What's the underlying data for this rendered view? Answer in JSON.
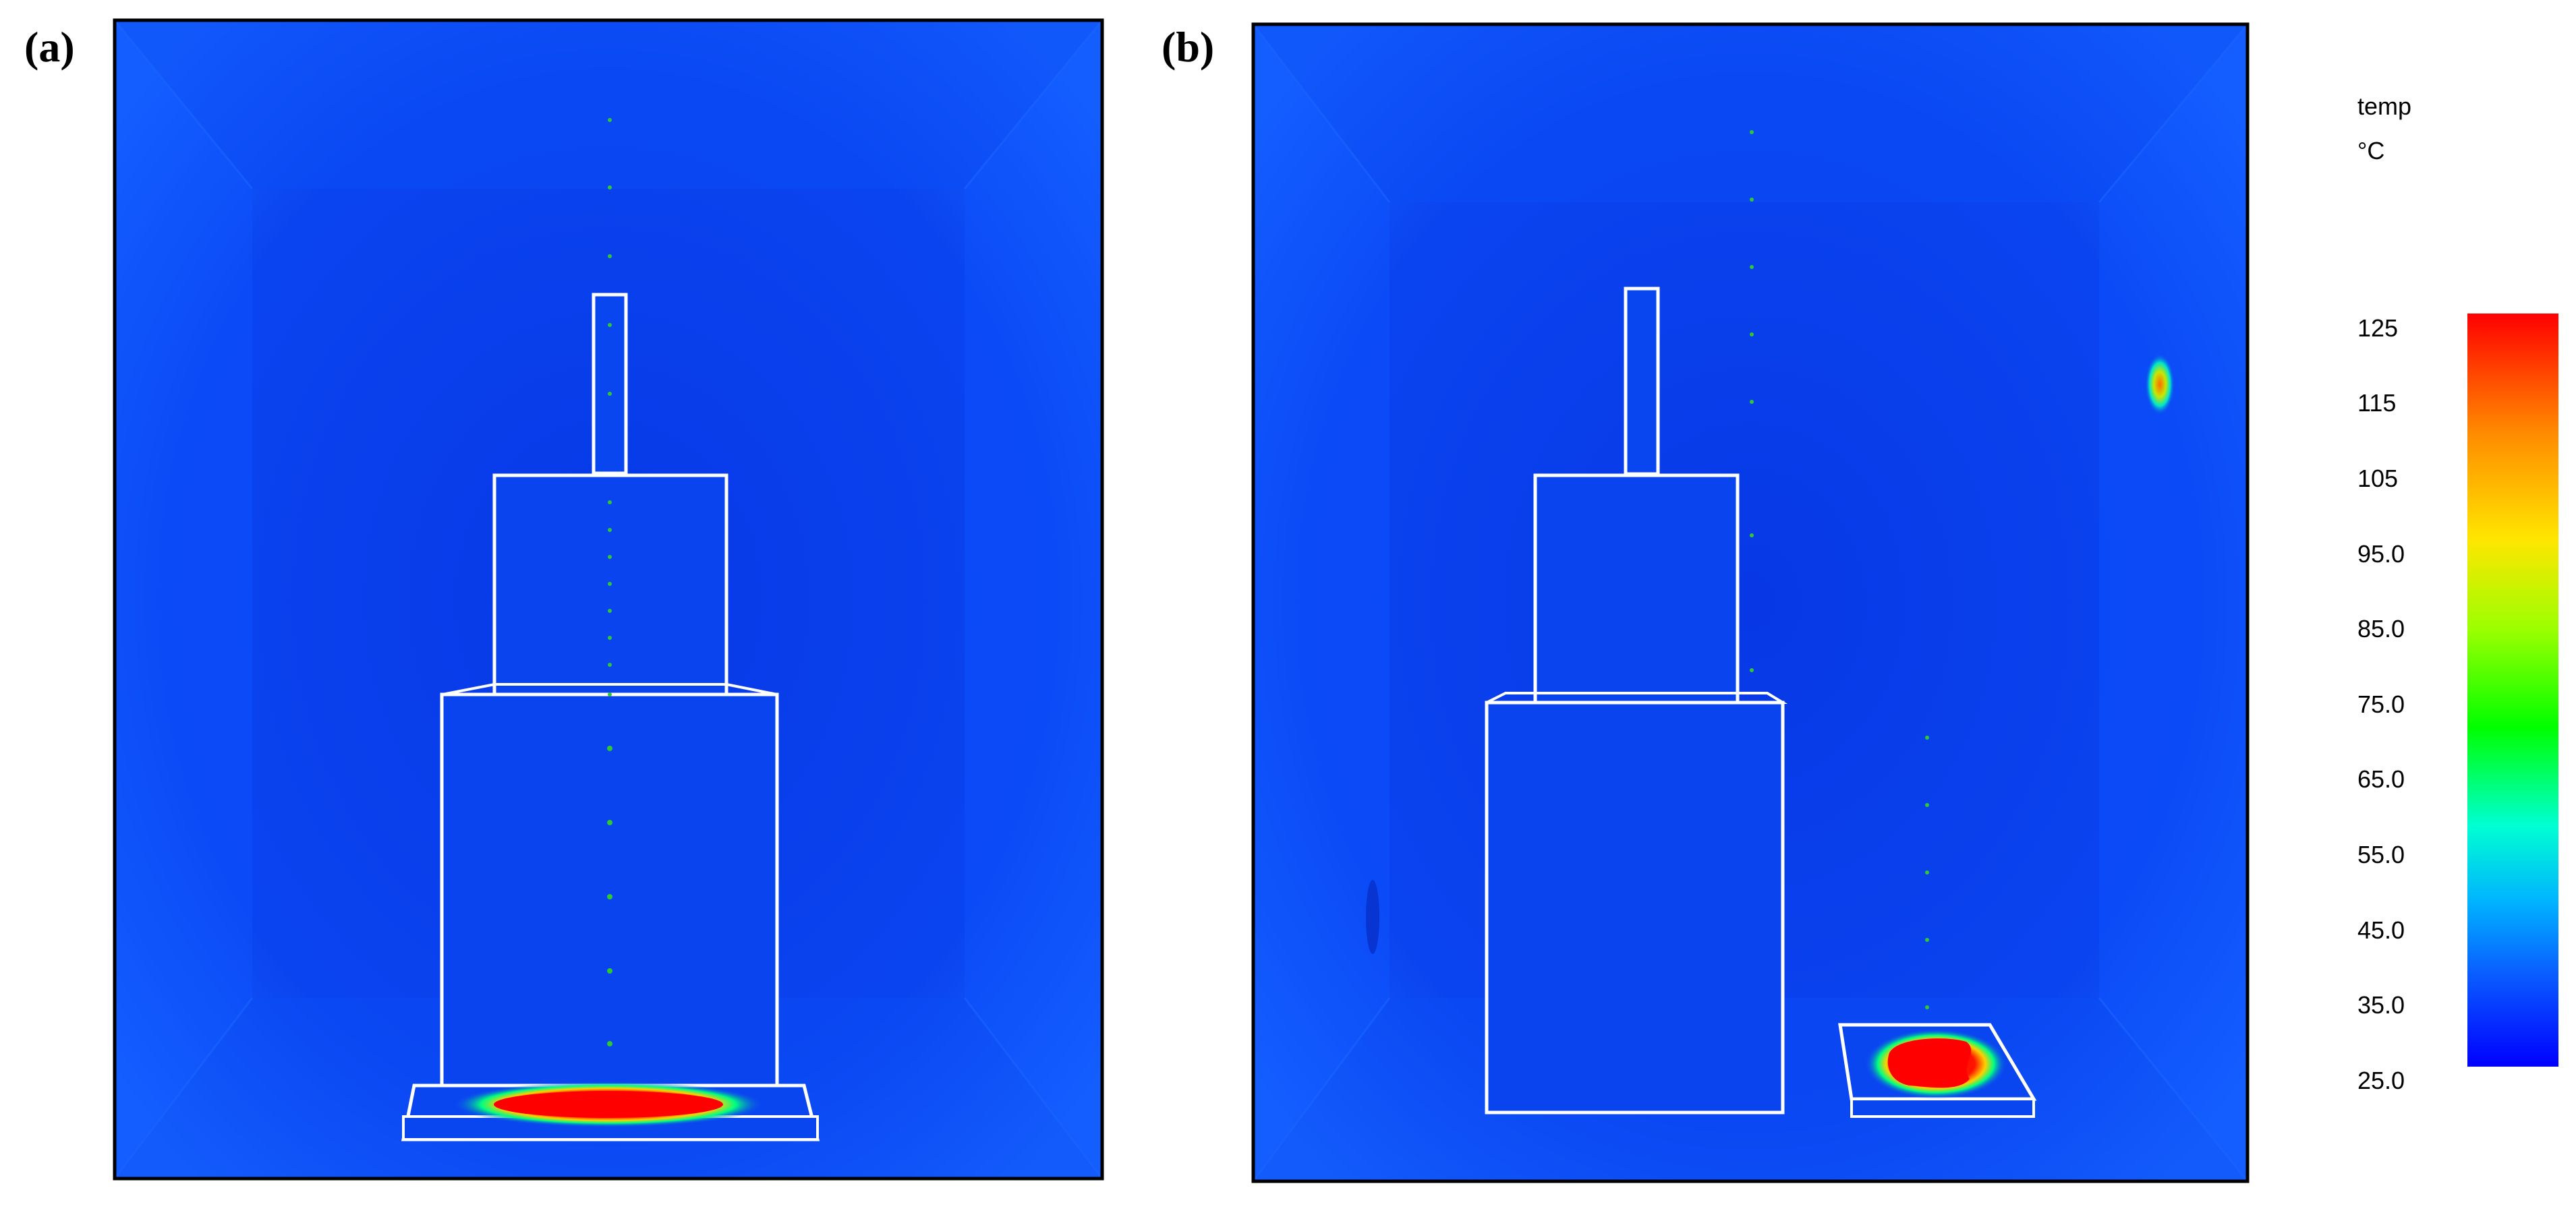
{
  "panels": [
    {
      "label": "(a)"
    },
    {
      "label": "(b)"
    }
  ],
  "legend": {
    "title": "temp",
    "unit": "°C",
    "ticks": [
      "125",
      "115",
      "105",
      "95.0",
      "85.0",
      "75.0",
      "65.0",
      "55.0",
      "45.0",
      "35.0",
      "25.0"
    ],
    "min": 25,
    "max": 125,
    "colors": [
      "#0000ff",
      "#0096ff",
      "#00ffd2",
      "#00ff00",
      "#b4ff00",
      "#ffd700",
      "#ff7800",
      "#ff0000"
    ]
  },
  "colors": {
    "field": "#0a46f0",
    "field_edge": "#0a5aff",
    "outline": "#ffffff",
    "hot": "#ff0000",
    "probe": "#32c832"
  }
}
